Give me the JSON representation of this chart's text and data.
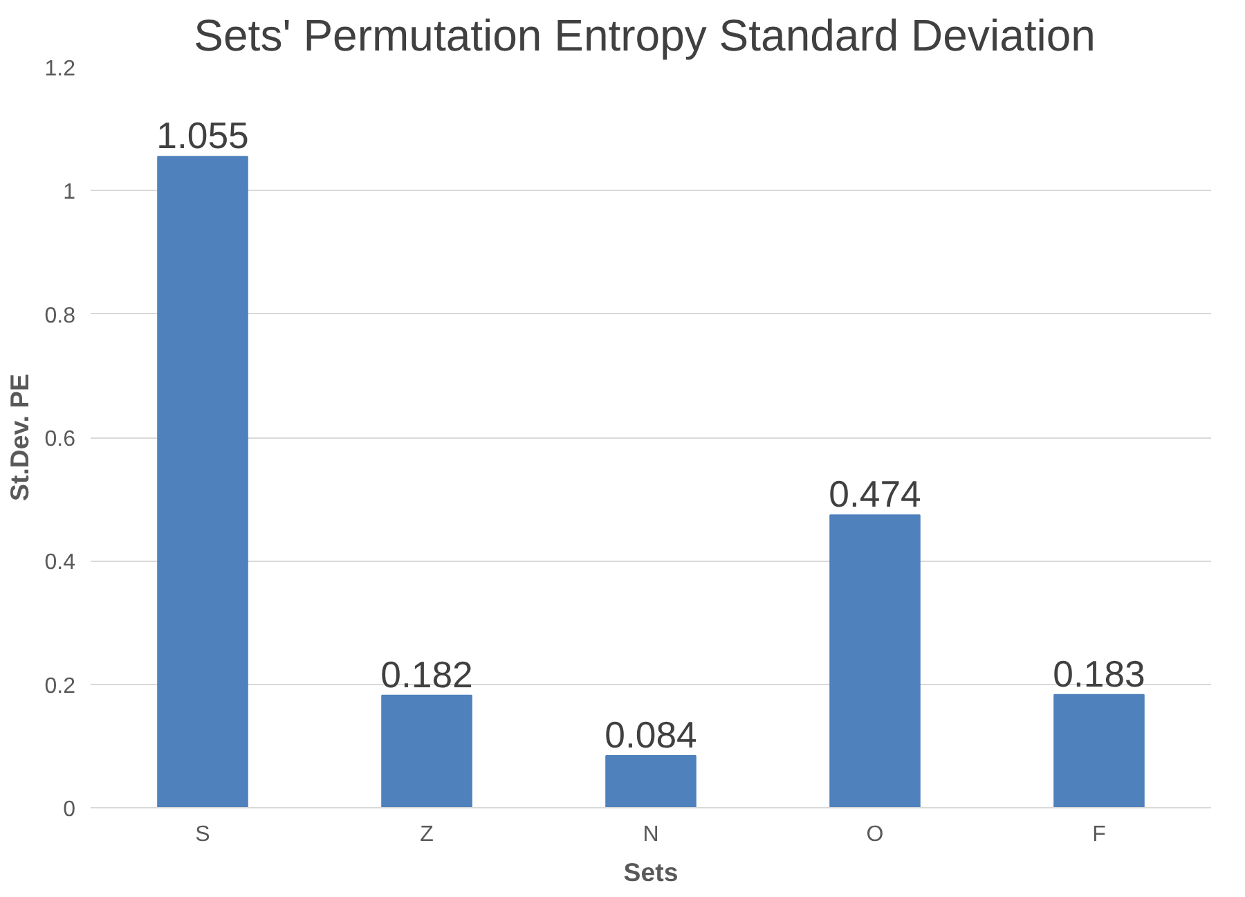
{
  "chart_data": {
    "type": "bar",
    "title": "Sets' Permutation Entropy  Standard Deviation",
    "xlabel": "Sets",
    "ylabel": "St.Dev. PE",
    "categories": [
      "S",
      "Z",
      "N",
      "O",
      "F"
    ],
    "values": [
      1.055,
      0.182,
      0.084,
      0.474,
      0.183
    ],
    "color": "#4f81bd",
    "ylim": [
      0,
      1.2
    ],
    "yticks": [
      0,
      0.2,
      0.4,
      0.6,
      0.8,
      1,
      1.2
    ],
    "grid": "y",
    "data_labels": true
  }
}
